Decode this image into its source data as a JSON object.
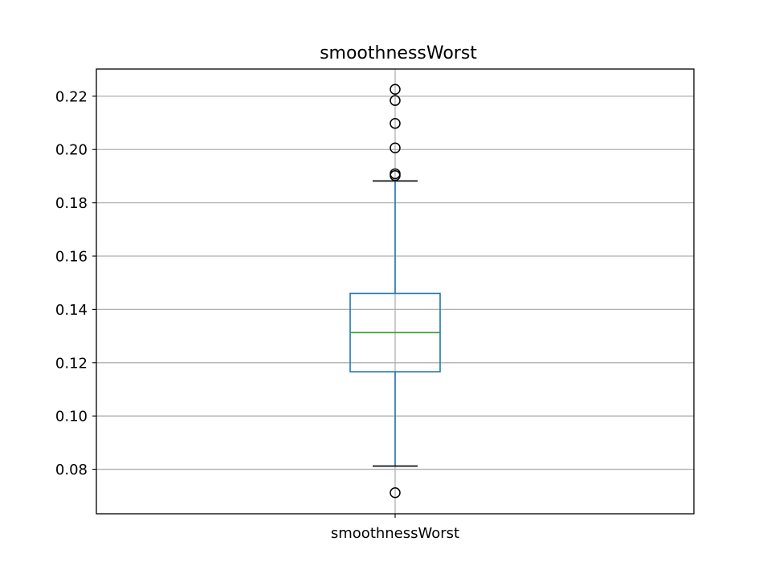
{
  "chart_data": {
    "type": "box",
    "title": "smoothnessWorst",
    "xlabel": "",
    "ylabel": "",
    "categories": [
      "smoothnessWorst"
    ],
    "ylim": [
      0.0633,
      0.2302
    ],
    "yticks": [
      0.08,
      0.1,
      0.12,
      0.14,
      0.16,
      0.18,
      0.2,
      0.22
    ],
    "ytick_labels": [
      "0.08",
      "0.10",
      "0.12",
      "0.14",
      "0.16",
      "0.18",
      "0.20",
      "0.22"
    ],
    "grid": true,
    "boxes": [
      {
        "name": "smoothnessWorst",
        "whisker_low": 0.0812,
        "q1": 0.1166,
        "median": 0.1313,
        "q3": 0.146,
        "whisker_high": 0.1882,
        "outliers": [
          0.0712,
          0.1902,
          0.1909,
          0.2006,
          0.2098,
          0.2184,
          0.2226
        ]
      }
    ],
    "colors": {
      "box": "#1f77b4",
      "median": "#2ca02c",
      "caps": "#000000",
      "grid": "#b0b0b0",
      "outlier_edge": "#000000"
    }
  }
}
